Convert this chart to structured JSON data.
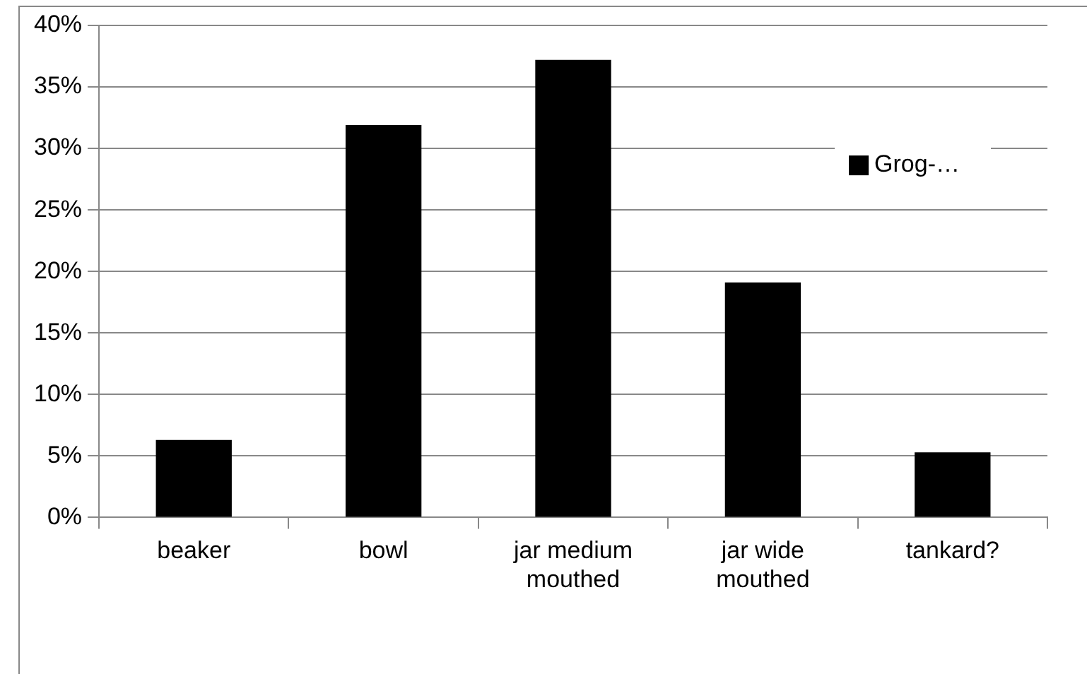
{
  "chart_data": {
    "type": "bar",
    "categories": [
      "beaker",
      "bowl",
      "jar medium mouthed",
      "jar wide mouthed",
      "tankard?"
    ],
    "series": [
      {
        "name": "Grog-…",
        "color": "#000000",
        "values": [
          6.3,
          31.9,
          37.2,
          19.1,
          5.3
        ]
      }
    ],
    "ylim": [
      0,
      40
    ],
    "yticks": [
      {
        "value": 0,
        "label": "0%"
      },
      {
        "value": 5,
        "label": "5%"
      },
      {
        "value": 10,
        "label": "10%"
      },
      {
        "value": 15,
        "label": "15%"
      },
      {
        "value": 20,
        "label": "20%"
      },
      {
        "value": 25,
        "label": "25%"
      },
      {
        "value": 30,
        "label": "30%"
      },
      {
        "value": 35,
        "label": "35%"
      },
      {
        "value": 40,
        "label": "40%"
      }
    ],
    "grid": "y",
    "legend": "right"
  }
}
